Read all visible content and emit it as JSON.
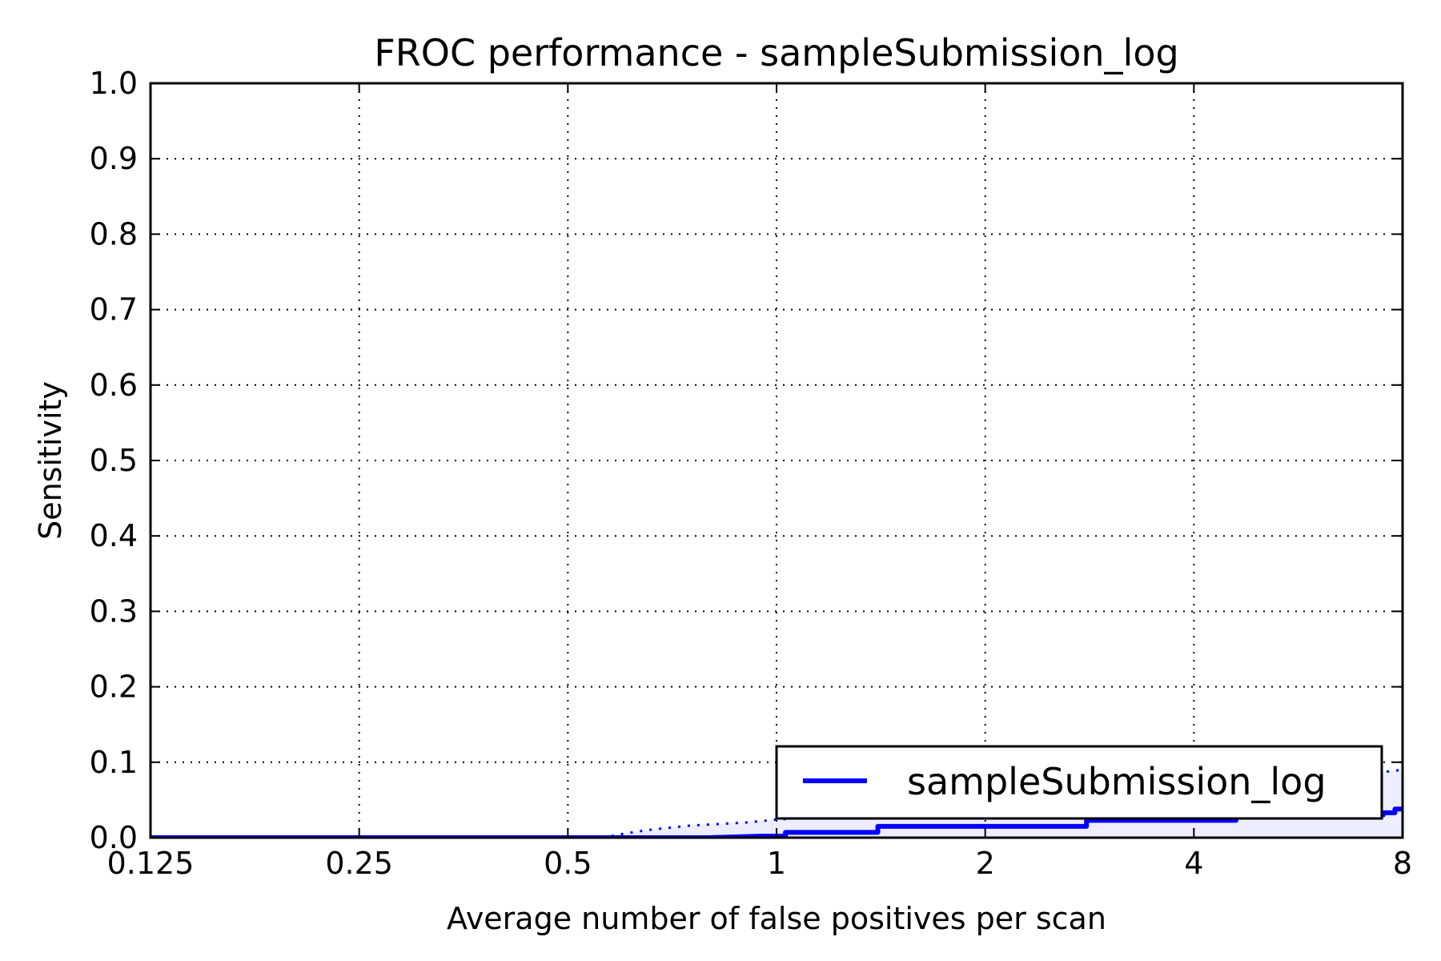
{
  "chart_data": {
    "type": "line",
    "title": "FROC performance - sampleSubmission_log",
    "xlabel": "Average number of false positives per scan",
    "ylabel": "Sensitivity",
    "xscale": "log2",
    "xlim": [
      0.125,
      8
    ],
    "ylim": [
      0.0,
      1.0
    ],
    "grid": true,
    "legend_position": "lower-right",
    "x_ticks": [
      {
        "value": 0.125,
        "label": "0.125"
      },
      {
        "value": 0.25,
        "label": "0.25"
      },
      {
        "value": 0.5,
        "label": "0.5"
      },
      {
        "value": 1,
        "label": "1"
      },
      {
        "value": 2,
        "label": "2"
      },
      {
        "value": 4,
        "label": "4"
      },
      {
        "value": 8,
        "label": "8"
      }
    ],
    "y_ticks": [
      {
        "value": 0.0,
        "label": "0.0"
      },
      {
        "value": 0.1,
        "label": "0.1"
      },
      {
        "value": 0.2,
        "label": "0.2"
      },
      {
        "value": 0.3,
        "label": "0.3"
      },
      {
        "value": 0.4,
        "label": "0.4"
      },
      {
        "value": 0.5,
        "label": "0.5"
      },
      {
        "value": 0.6,
        "label": "0.6"
      },
      {
        "value": 0.7,
        "label": "0.7"
      },
      {
        "value": 0.8,
        "label": "0.8"
      },
      {
        "value": 0.9,
        "label": "0.9"
      },
      {
        "value": 1.0,
        "label": "1.0"
      }
    ],
    "series": [
      {
        "name": "sampleSubmission_log",
        "color": "#0000ff",
        "x": [
          0.125,
          0.8,
          0.95,
          1.03,
          1.03,
          1.4,
          1.4,
          2.8,
          2.8,
          4.6,
          4.6,
          7.5,
          7.5,
          7.8,
          7.8,
          8.0
        ],
        "y": [
          0.0,
          0.0,
          0.002,
          0.002,
          0.007,
          0.007,
          0.015,
          0.015,
          0.023,
          0.023,
          0.03,
          0.03,
          0.033,
          0.033,
          0.038,
          0.038
        ]
      }
    ],
    "confidence_band": {
      "color": "#0000ff",
      "upper": {
        "x": [
          0.125,
          0.56,
          0.6,
          0.65,
          0.75,
          0.9,
          1.0,
          1.5,
          2.0,
          3.0,
          4.0,
          5.0,
          6.0,
          7.5,
          8.0
        ],
        "y": [
          0.0,
          0.0,
          0.005,
          0.01,
          0.016,
          0.02,
          0.024,
          0.035,
          0.045,
          0.055,
          0.062,
          0.07,
          0.077,
          0.087,
          0.09
        ]
      },
      "lower": {
        "x": [
          0.125,
          8.0
        ],
        "y": [
          0.0,
          0.0
        ]
      }
    }
  }
}
